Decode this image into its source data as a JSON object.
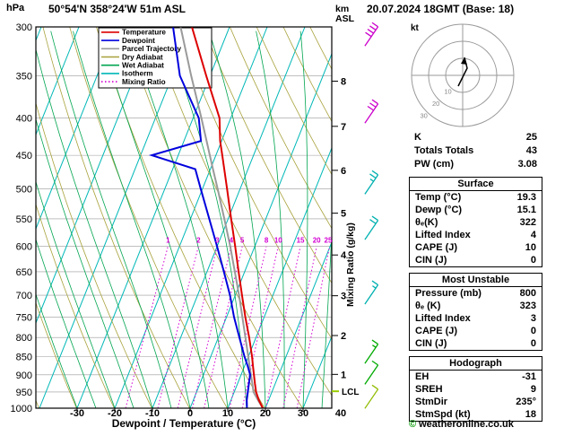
{
  "header": {
    "station": "50°54'N 358°24'W 51m ASL",
    "valid": "20.07.2024 18GMT (Base: 18)"
  },
  "chart_data": {
    "type": "skewt_logp_sounding",
    "xlabel": "Dewpoint / Temperature (°C)",
    "pressure_unit": "hPa",
    "altitude_unit_lines": [
      "km",
      "ASL"
    ],
    "mixing_ratio_axis_label": "Mixing Ratio (g/kg)",
    "lcl_label": "LCL",
    "lcl_pressure_hpa": 948,
    "pressure_ticks": [
      300,
      350,
      400,
      450,
      500,
      550,
      600,
      650,
      700,
      750,
      800,
      850,
      900,
      950,
      1000
    ],
    "temp_ticks": [
      -30,
      -20,
      -10,
      0,
      10,
      20,
      30,
      40
    ],
    "km_ticks": [
      1,
      2,
      3,
      4,
      5,
      6,
      7,
      8
    ],
    "mixing_ratio_lines": [
      1,
      2,
      3,
      4,
      5,
      8,
      10,
      15,
      20,
      25
    ],
    "legend": [
      {
        "label": "Temperature",
        "color": "#dd0000",
        "dash": ""
      },
      {
        "label": "Dewpoint",
        "color": "#0000dd",
        "dash": ""
      },
      {
        "label": "Parcel Trajectory",
        "color": "#9a9a9a",
        "dash": ""
      },
      {
        "label": "Dry Adiabat",
        "color": "#a8a23c",
        "dash": ""
      },
      {
        "label": "Wet Adiabat",
        "color": "#00a550",
        "dash": ""
      },
      {
        "label": "Isotherm",
        "color": "#00b7b7",
        "dash": ""
      },
      {
        "label": "Mixing Ratio",
        "color": "#d400d4",
        "dash": "1.5,2.5"
      }
    ],
    "sounding": {
      "pressure_hpa": [
        1000,
        975,
        950,
        925,
        900,
        875,
        850,
        800,
        750,
        700,
        650,
        600,
        550,
        500,
        470,
        450,
        430,
        400,
        350,
        300
      ],
      "temperature_c": [
        19.3,
        17.4,
        15.8,
        14.6,
        13.4,
        12.2,
        11.0,
        8.2,
        5.0,
        1.8,
        -1.6,
        -5.2,
        -9.2,
        -13.5,
        -16.3,
        -18.3,
        -20.4,
        -23.0,
        -31.0,
        -40.0
      ],
      "dewpoint_c": [
        15.1,
        14.2,
        13.6,
        13.0,
        12.4,
        10.8,
        9.0,
        5.6,
        2.0,
        -1.4,
        -5.5,
        -10.0,
        -15.0,
        -20.5,
        -24.0,
        -37.0,
        -25.5,
        -28.5,
        -38.0,
        -45.0
      ],
      "parcel_c": [
        19.3,
        17.2,
        15.1,
        13.9,
        12.6,
        11.3,
        10.0,
        7.2,
        4.2,
        1.0,
        -2.6,
        -6.5,
        -11.0,
        -16.0,
        -19.3,
        -21.6,
        -24.0,
        -27.8,
        -35.0,
        -43.0
      ]
    },
    "wind_barbs": [
      {
        "pressure_hpa": 312,
        "speed_kt": 40,
        "color": "#cc00cc"
      },
      {
        "pressure_hpa": 398,
        "speed_kt": 30,
        "color": "#cc00cc"
      },
      {
        "pressure_hpa": 498,
        "speed_kt": 25,
        "color": "#00b0b0"
      },
      {
        "pressure_hpa": 575,
        "speed_kt": 20,
        "color": "#00b0b0"
      },
      {
        "pressure_hpa": 705,
        "speed_kt": 15,
        "color": "#00b0b0"
      },
      {
        "pressure_hpa": 850,
        "speed_kt": 15,
        "color": "#00aa00"
      },
      {
        "pressure_hpa": 908,
        "speed_kt": 10,
        "color": "#00aa00"
      },
      {
        "pressure_hpa": 980,
        "speed_kt": 10,
        "color": "#8fbc00"
      }
    ]
  },
  "hodograph": {
    "unit": "kt",
    "rings_kt": [
      10,
      20,
      30
    ]
  },
  "panel": {
    "indices": [
      {
        "label": "K",
        "value": "25"
      },
      {
        "label": "Totals Totals",
        "value": "43"
      },
      {
        "label": "PW (cm)",
        "value": "3.08"
      }
    ],
    "surface": {
      "title": "Surface",
      "rows": [
        {
          "label": "Temp (°C)",
          "value": "19.3"
        },
        {
          "label": "Dewp (°C)",
          "value": "15.1"
        },
        {
          "label": "θₑ(K)",
          "value": "322"
        },
        {
          "label": "Lifted Index",
          "value": "4"
        },
        {
          "label": "CAPE (J)",
          "value": "10"
        },
        {
          "label": "CIN (J)",
          "value": "0"
        }
      ]
    },
    "most_unstable": {
      "title": "Most Unstable",
      "rows": [
        {
          "label": "Pressure (mb)",
          "value": "800"
        },
        {
          "label": "θₑ (K)",
          "value": "323"
        },
        {
          "label": "Lifted Index",
          "value": "3"
        },
        {
          "label": "CAPE (J)",
          "value": "0"
        },
        {
          "label": "CIN (J)",
          "value": "0"
        }
      ]
    },
    "hodograph_stats": {
      "title": "Hodograph",
      "rows": [
        {
          "label": "EH",
          "value": "-31"
        },
        {
          "label": "SREH",
          "value": "9"
        },
        {
          "label": "StmDir",
          "value": "235°"
        },
        {
          "label": "StmSpd (kt)",
          "value": "18"
        }
      ]
    }
  },
  "footer": {
    "symbol": "©",
    "text": "weatheronline.co.uk"
  }
}
